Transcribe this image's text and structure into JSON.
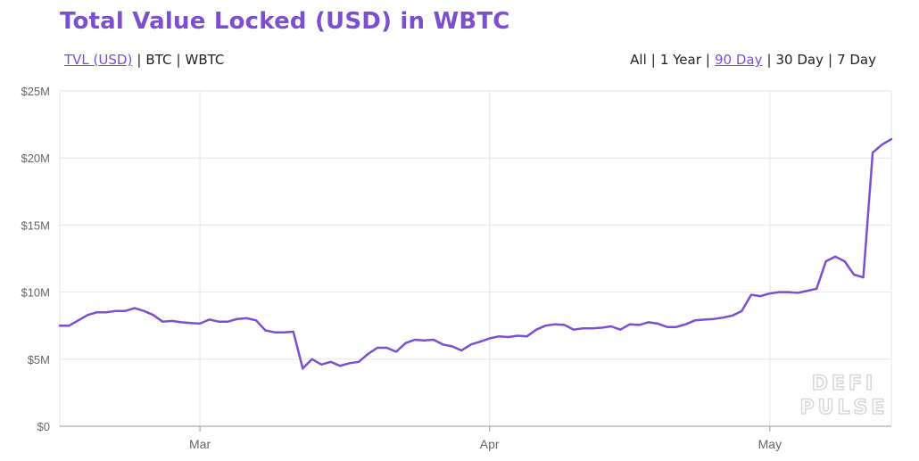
{
  "title": "Total Value Locked (USD) in WBTC",
  "unit_toggle": [
    {
      "label": "TVL (USD)",
      "active": true
    },
    {
      "label": "BTC",
      "active": false
    },
    {
      "label": "WBTC",
      "active": false
    }
  ],
  "range_toggle": [
    {
      "label": "All",
      "active": false
    },
    {
      "label": "1 Year",
      "active": false
    },
    {
      "label": "90 Day",
      "active": true
    },
    {
      "label": "30 Day",
      "active": false
    },
    {
      "label": "7 Day",
      "active": false
    }
  ],
  "watermark": [
    "DEFI",
    "PULSE"
  ],
  "colors": {
    "line": "#7b4fd0",
    "grid": "#e6e6e6",
    "axis": "#999999"
  },
  "chart_data": {
    "type": "line",
    "y_unit": "USD",
    "ylim": [
      0,
      25000000
    ],
    "y_ticks": [
      {
        "value": 0,
        "label": "$0"
      },
      {
        "value": 5000000,
        "label": "$5M"
      },
      {
        "value": 10000000,
        "label": "$10M"
      },
      {
        "value": 15000000,
        "label": "$15M"
      },
      {
        "value": 20000000,
        "label": "$20M"
      },
      {
        "value": 25000000,
        "label": "$25M"
      }
    ],
    "x_domain": [
      "2020-02-15",
      "2020-05-14"
    ],
    "x_ticks": [
      {
        "date": "2020-03-01",
        "label": "Mar"
      },
      {
        "date": "2020-04-01",
        "label": "Apr"
      },
      {
        "date": "2020-05-01",
        "label": "May"
      }
    ],
    "grid": true,
    "series": [
      {
        "values": [
          [
            "2020-02-15",
            7.5
          ],
          [
            "2020-02-16",
            7.5
          ],
          [
            "2020-02-17",
            7.9
          ],
          [
            "2020-02-18",
            8.3
          ],
          [
            "2020-02-19",
            8.5
          ],
          [
            "2020-02-20",
            8.5
          ],
          [
            "2020-02-21",
            8.6
          ],
          [
            "2020-02-22",
            8.6
          ],
          [
            "2020-02-23",
            8.8
          ],
          [
            "2020-02-24",
            8.6
          ],
          [
            "2020-02-25",
            8.3
          ],
          [
            "2020-02-26",
            7.8
          ],
          [
            "2020-02-27",
            7.85
          ],
          [
            "2020-02-28",
            7.75
          ],
          [
            "2020-02-29",
            7.7
          ],
          [
            "2020-03-01",
            7.65
          ],
          [
            "2020-03-02",
            7.95
          ],
          [
            "2020-03-03",
            7.8
          ],
          [
            "2020-03-04",
            7.8
          ],
          [
            "2020-03-05",
            8.0
          ],
          [
            "2020-03-06",
            8.05
          ],
          [
            "2020-03-07",
            7.9
          ],
          [
            "2020-03-08",
            7.15
          ],
          [
            "2020-03-09",
            7.0
          ],
          [
            "2020-03-10",
            7.0
          ],
          [
            "2020-03-11",
            7.05
          ],
          [
            "2020-03-12",
            4.3
          ],
          [
            "2020-03-13",
            5.0
          ],
          [
            "2020-03-14",
            4.6
          ],
          [
            "2020-03-15",
            4.8
          ],
          [
            "2020-03-16",
            4.5
          ],
          [
            "2020-03-17",
            4.7
          ],
          [
            "2020-03-18",
            4.8
          ],
          [
            "2020-03-19",
            5.4
          ],
          [
            "2020-03-20",
            5.85
          ],
          [
            "2020-03-21",
            5.85
          ],
          [
            "2020-03-22",
            5.55
          ],
          [
            "2020-03-23",
            6.2
          ],
          [
            "2020-03-24",
            6.45
          ],
          [
            "2020-03-25",
            6.4
          ],
          [
            "2020-03-26",
            6.45
          ],
          [
            "2020-03-27",
            6.1
          ],
          [
            "2020-03-28",
            5.95
          ],
          [
            "2020-03-29",
            5.65
          ],
          [
            "2020-03-30",
            6.1
          ],
          [
            "2020-03-31",
            6.3
          ],
          [
            "2020-04-01",
            6.55
          ],
          [
            "2020-04-02",
            6.7
          ],
          [
            "2020-04-03",
            6.65
          ],
          [
            "2020-04-04",
            6.75
          ],
          [
            "2020-04-05",
            6.7
          ],
          [
            "2020-04-06",
            7.2
          ],
          [
            "2020-04-07",
            7.5
          ],
          [
            "2020-04-08",
            7.6
          ],
          [
            "2020-04-09",
            7.55
          ],
          [
            "2020-04-10",
            7.2
          ],
          [
            "2020-04-11",
            7.3
          ],
          [
            "2020-04-12",
            7.3
          ],
          [
            "2020-04-13",
            7.35
          ],
          [
            "2020-04-14",
            7.45
          ],
          [
            "2020-04-15",
            7.2
          ],
          [
            "2020-04-16",
            7.6
          ],
          [
            "2020-04-17",
            7.55
          ],
          [
            "2020-04-18",
            7.75
          ],
          [
            "2020-04-19",
            7.65
          ],
          [
            "2020-04-20",
            7.4
          ],
          [
            "2020-04-21",
            7.4
          ],
          [
            "2020-04-22",
            7.6
          ],
          [
            "2020-04-23",
            7.9
          ],
          [
            "2020-04-24",
            7.95
          ],
          [
            "2020-04-25",
            8.0
          ],
          [
            "2020-04-26",
            8.1
          ],
          [
            "2020-04-27",
            8.25
          ],
          [
            "2020-04-28",
            8.6
          ],
          [
            "2020-04-29",
            9.8
          ],
          [
            "2020-04-30",
            9.7
          ],
          [
            "2020-05-01",
            9.9
          ],
          [
            "2020-05-02",
            10.0
          ],
          [
            "2020-05-03",
            10.0
          ],
          [
            "2020-05-04",
            9.95
          ],
          [
            "2020-05-05",
            10.1
          ],
          [
            "2020-05-06",
            10.25
          ],
          [
            "2020-05-07",
            12.3
          ],
          [
            "2020-05-08",
            12.65
          ],
          [
            "2020-05-09",
            12.3
          ],
          [
            "2020-05-10",
            11.3
          ],
          [
            "2020-05-11",
            11.1
          ],
          [
            "2020-05-12",
            20.4
          ],
          [
            "2020-05-13",
            21.0
          ],
          [
            "2020-05-14",
            21.4
          ]
        ],
        "value_scale": 1000000
      }
    ]
  }
}
